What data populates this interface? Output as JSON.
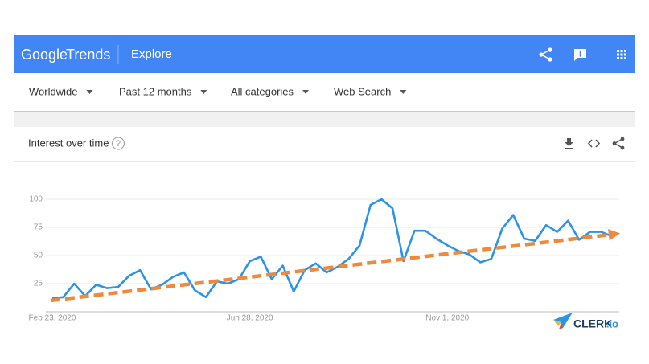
{
  "header": {
    "logo_google": "Google",
    "logo_trends": "Trends",
    "section": "Explore"
  },
  "filters": [
    "Worldwide",
    "Past 12 months",
    "All categories",
    "Web Search"
  ],
  "card": {
    "title": "Interest over time",
    "help": "?"
  },
  "chart_data": {
    "type": "line",
    "categories": [
      "Feb 23, 2020",
      null,
      null,
      null,
      null,
      null,
      null,
      null,
      null,
      null,
      null,
      null,
      null,
      null,
      null,
      null,
      null,
      null,
      "Jun 28, 2020",
      null,
      null,
      null,
      null,
      null,
      null,
      null,
      null,
      null,
      null,
      null,
      null,
      null,
      null,
      null,
      null,
      null,
      "Nov 1, 2020",
      null,
      null,
      null,
      null,
      null,
      null,
      null,
      null,
      null,
      null,
      null,
      null,
      null,
      null,
      null
    ],
    "values": [
      12,
      13,
      25,
      14,
      24,
      21,
      22,
      32,
      37,
      20,
      24,
      31,
      35,
      19,
      13,
      27,
      25,
      29,
      45,
      49,
      29,
      41,
      18,
      37,
      43,
      35,
      40,
      47,
      59,
      95,
      100,
      92,
      45,
      72,
      72,
      65,
      59,
      54,
      51,
      44,
      47,
      74,
      86,
      65,
      63,
      77,
      71,
      81,
      64,
      71,
      71,
      67
    ],
    "color": "#2b94e8",
    "trend": {
      "color": "#ee8a3c",
      "values": [
        10,
        69
      ]
    },
    "ylim": [
      0,
      100
    ],
    "yticks": [
      25,
      50,
      75,
      100
    ],
    "grid": true
  },
  "watermark": {
    "brand": "CLERK",
    "suffix": ".io"
  }
}
